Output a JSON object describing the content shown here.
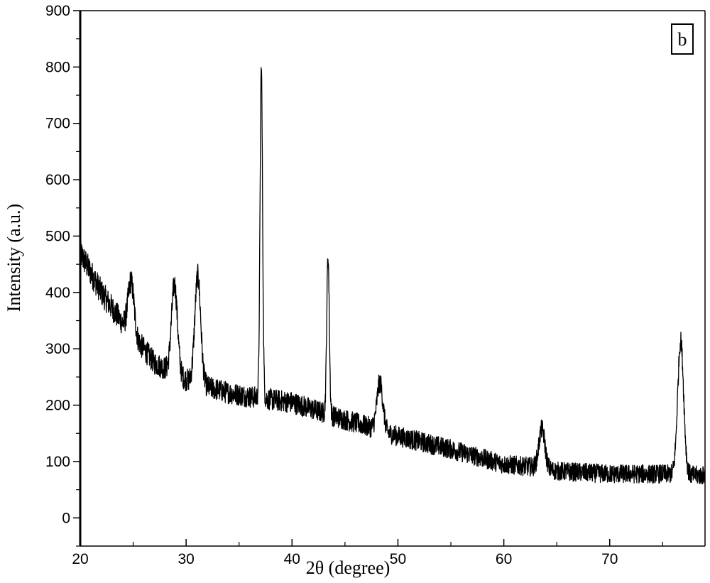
{
  "chart_data": {
    "type": "line",
    "title": "",
    "panel_label": "b",
    "xlabel": "2θ (degree)",
    "ylabel": "Intensity (a.u.)",
    "xlim": [
      20,
      79
    ],
    "ylim": [
      -50,
      900
    ],
    "x_ticks": [
      20,
      30,
      40,
      50,
      60,
      70
    ],
    "x_tick_labels": [
      "20",
      "30",
      "40",
      "50",
      "60",
      "70"
    ],
    "y_ticks": [
      0,
      100,
      200,
      300,
      400,
      500,
      600,
      700,
      800,
      900
    ],
    "y_tick_labels": [
      "0",
      "100",
      "200",
      "300",
      "400",
      "500",
      "600",
      "700",
      "800",
      "900"
    ],
    "grid": false,
    "legend": "none",
    "line_color": "#000000",
    "series": [
      {
        "baseline": [
          [
            20,
            470
          ],
          [
            22,
            400
          ],
          [
            24,
            345
          ],
          [
            26,
            300
          ],
          [
            27,
            275
          ],
          [
            28,
            265
          ],
          [
            30,
            245
          ],
          [
            32,
            232
          ],
          [
            34,
            222
          ],
          [
            36,
            215
          ],
          [
            40,
            205
          ],
          [
            44,
            180
          ],
          [
            47,
            163
          ],
          [
            50,
            145
          ],
          [
            55,
            122
          ],
          [
            60,
            95
          ],
          [
            63,
            90
          ],
          [
            65,
            83
          ],
          [
            70,
            78
          ],
          [
            75,
            78
          ],
          [
            79,
            75
          ]
        ],
        "peaks": [
          {
            "x": 24.8,
            "height": 420
          },
          {
            "x": 28.9,
            "height": 415
          },
          {
            "x": 31.1,
            "height": 430
          },
          {
            "x": 37.1,
            "height": 800
          },
          {
            "x": 43.4,
            "height": 465
          },
          {
            "x": 48.3,
            "height": 240
          },
          {
            "x": 63.6,
            "height": 158
          },
          {
            "x": 76.7,
            "height": 315
          }
        ],
        "noise_amplitude": 25
      }
    ]
  }
}
